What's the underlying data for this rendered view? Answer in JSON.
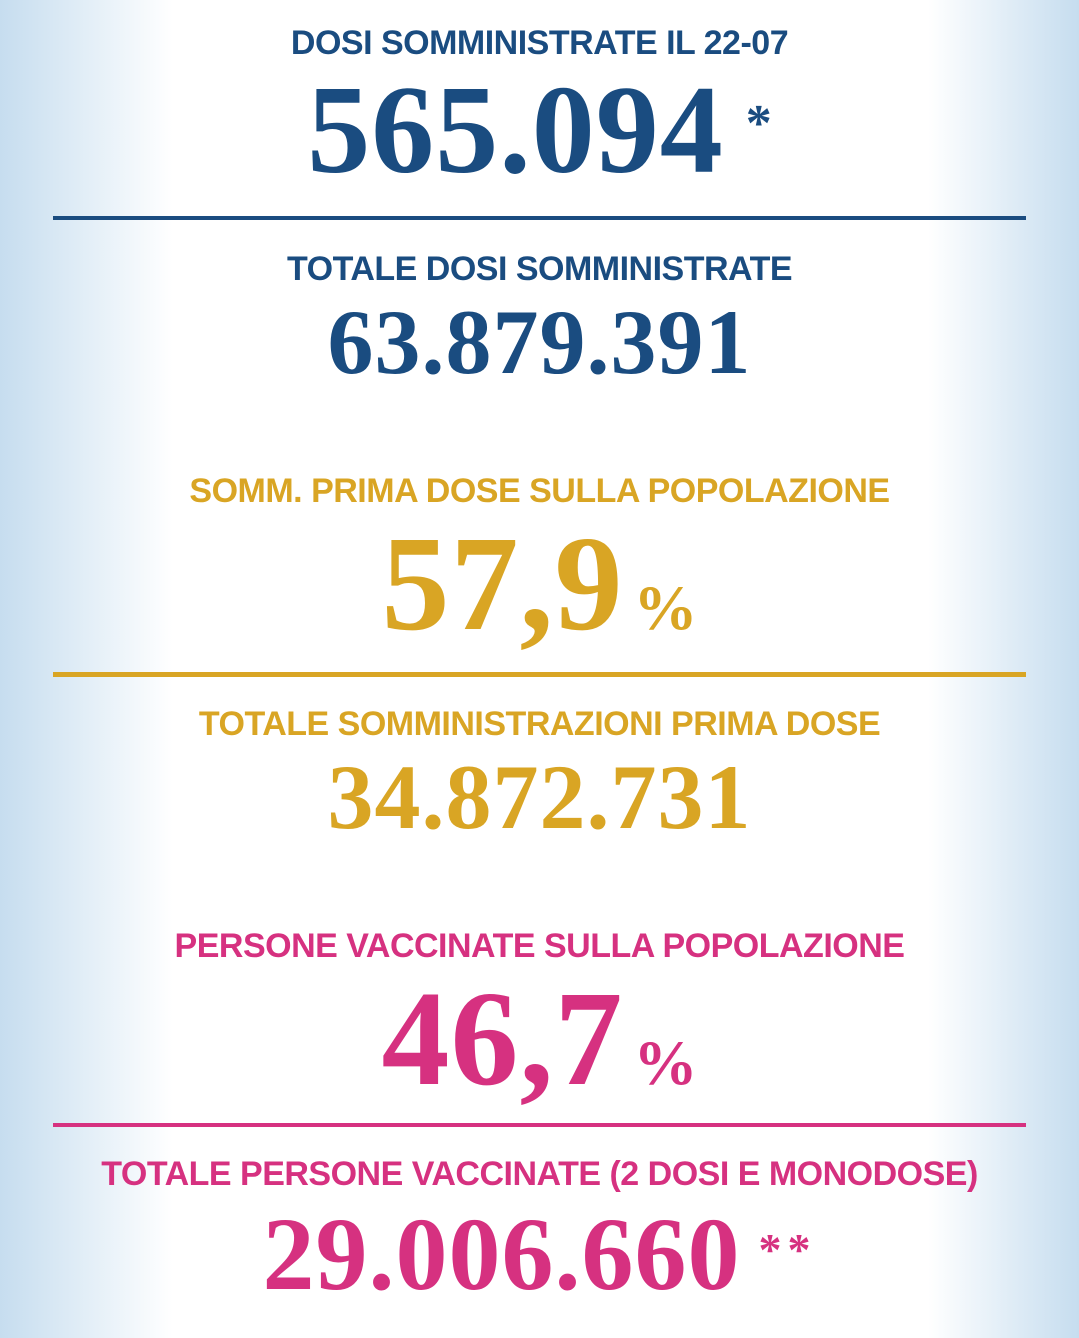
{
  "page": {
    "colors": {
      "navy": "#1a4c80",
      "gold": "#d9a524",
      "pink": "#d63180",
      "bg_edge": "#c6ddef",
      "bg_center": "#ffffff"
    }
  },
  "stats": [
    {
      "label": "DOSI SOMMINISTRATE IL 22-07",
      "value": "565.094",
      "note": "*"
    },
    {
      "label": "TOTALE DOSI SOMMINISTRATE",
      "value": "63.879.391"
    },
    {
      "label": "SOMM. PRIMA DOSE SULLA POPOLAZIONE",
      "value": "57,9",
      "unit": "%"
    },
    {
      "label": "TOTALE SOMMINISTRAZIONI PRIMA DOSE",
      "value": "34.872.731"
    },
    {
      "label": "PERSONE VACCINATE SULLA POPOLAZIONE",
      "value": "46,7",
      "unit": "%"
    },
    {
      "label": "TOTALE PERSONE VACCINATE (2 DOSI E MONODOSE)",
      "value": "29.006.660",
      "note": "**"
    }
  ],
  "chart_data": {
    "type": "table",
    "title": "Report vaccinazioni anti COVID-19 (Italia)",
    "rows": [
      {
        "label": "DOSI SOMMINISTRATE IL 22-07",
        "value": 565094,
        "display": "565.094 *",
        "color_group": "blue"
      },
      {
        "label": "TOTALE DOSI SOMMINISTRATE",
        "value": 63879391,
        "display": "63.879.391",
        "color_group": "blue"
      },
      {
        "label": "SOMM. PRIMA DOSE SULLA POPOLAZIONE",
        "value": 57.9,
        "unit": "%",
        "display": "57,9%",
        "color_group": "gold"
      },
      {
        "label": "TOTALE SOMMINISTRAZIONI PRIMA DOSE",
        "value": 34872731,
        "display": "34.872.731",
        "color_group": "gold"
      },
      {
        "label": "PERSONE VACCINATE SULLA POPOLAZIONE",
        "value": 46.7,
        "unit": "%",
        "display": "46,7%",
        "color_group": "pink"
      },
      {
        "label": "TOTALE PERSONE VACCINATE (2 DOSI E MONODOSE)",
        "value": 29006660,
        "display": "29.006.660 **",
        "color_group": "pink"
      }
    ]
  }
}
